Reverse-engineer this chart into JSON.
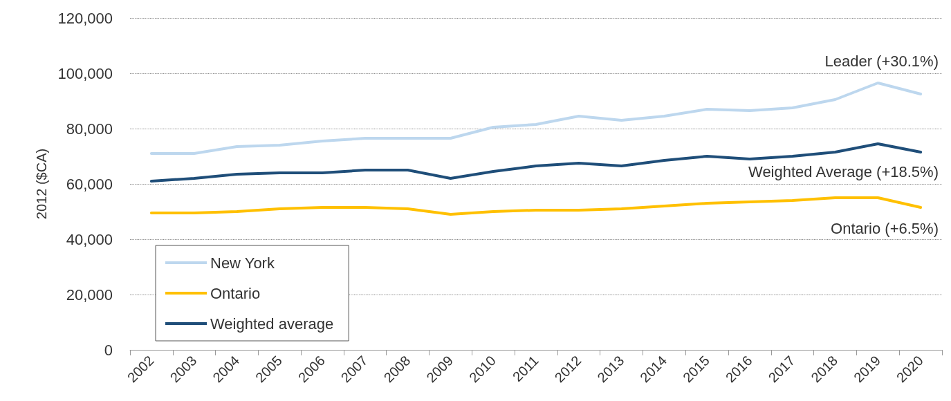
{
  "chart_data": {
    "type": "line",
    "ylabel": "2012 ($CA)",
    "categories": [
      "2002",
      "2003",
      "2004",
      "2005",
      "2006",
      "2007",
      "2008",
      "2009",
      "2010",
      "2011",
      "2012",
      "2013",
      "2014",
      "2015",
      "2016",
      "2017",
      "2018",
      "2019",
      "2020"
    ],
    "series": [
      {
        "name": "New York",
        "color": "#bdd7ee",
        "values": [
          71000,
          71000,
          73500,
          74000,
          75500,
          76500,
          76500,
          76500,
          80500,
          81500,
          84500,
          83000,
          84500,
          87000,
          86500,
          87500,
          90500,
          96500,
          92500
        ]
      },
      {
        "name": "Ontario",
        "color": "#ffc000",
        "values": [
          49500,
          49500,
          50000,
          51000,
          51500,
          51500,
          51000,
          49000,
          50000,
          50500,
          50500,
          51000,
          52000,
          53000,
          53500,
          54000,
          55000,
          55000,
          51500
        ]
      },
      {
        "name": "Weighted average",
        "color": "#1f4e79",
        "values": [
          61000,
          62000,
          63500,
          64000,
          64000,
          65000,
          65000,
          62000,
          64500,
          66500,
          67500,
          66500,
          68500,
          70000,
          69000,
          70000,
          71500,
          74500,
          71500
        ]
      }
    ],
    "ylim": [
      0,
      120000
    ],
    "yticks": [
      0,
      {
        "value": 20000,
        "label": "20,000"
      },
      {
        "value": 40000,
        "label": "40,000"
      },
      {
        "value": 60000,
        "label": "60,000"
      },
      {
        "value": 80000,
        "label": "80,000"
      },
      {
        "value": 100000,
        "label": "100,000"
      },
      {
        "value": 120000,
        "label": "120,000"
      }
    ],
    "grid": "y",
    "legend": "bottom left",
    "marker": "none",
    "line_style": "solid",
    "annotations": [
      "Leader (+30.1%)",
      "Weighted Average (+18.5%)",
      "Ontario (+6.5%)"
    ]
  }
}
